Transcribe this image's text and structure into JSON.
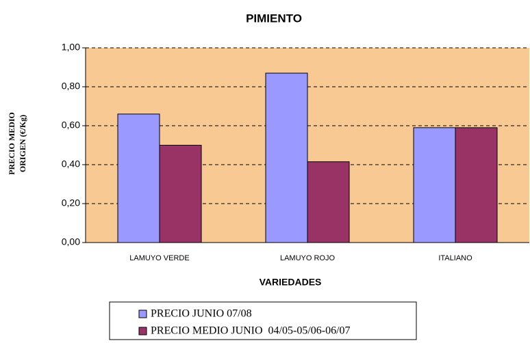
{
  "chart_data": {
    "type": "bar",
    "title": "PIMIENTO",
    "x_label": "VARIEDADES",
    "y_label": [
      "PRECIO MEDIO",
      "ORIGEN (€/Kg)"
    ],
    "categories": [
      "LAMUYO VERDE",
      "LAMUYO ROJO",
      "ITALIANO"
    ],
    "series": [
      {
        "name": "PRECIO JUNIO 07/08",
        "color": "#9999ff",
        "values": [
          0.66,
          0.87,
          0.59
        ]
      },
      {
        "name": "PRECIO MEDIO JUNIO  04/05-05/06-06/07",
        "color": "#993366",
        "values": [
          0.5,
          0.415,
          0.59
        ]
      }
    ],
    "ylim": [
      0,
      1
    ],
    "yticks": [
      {
        "value": 0,
        "label": "0,00"
      },
      {
        "value": 0.2,
        "label": "0,20"
      },
      {
        "value": 0.4,
        "label": "0,40"
      },
      {
        "value": 0.6,
        "label": "0,60"
      },
      {
        "value": 0.8,
        "label": "0,80"
      },
      {
        "value": 1,
        "label": "1,00"
      }
    ],
    "grid": true,
    "legend": "bottom",
    "background": "#f9c993"
  }
}
